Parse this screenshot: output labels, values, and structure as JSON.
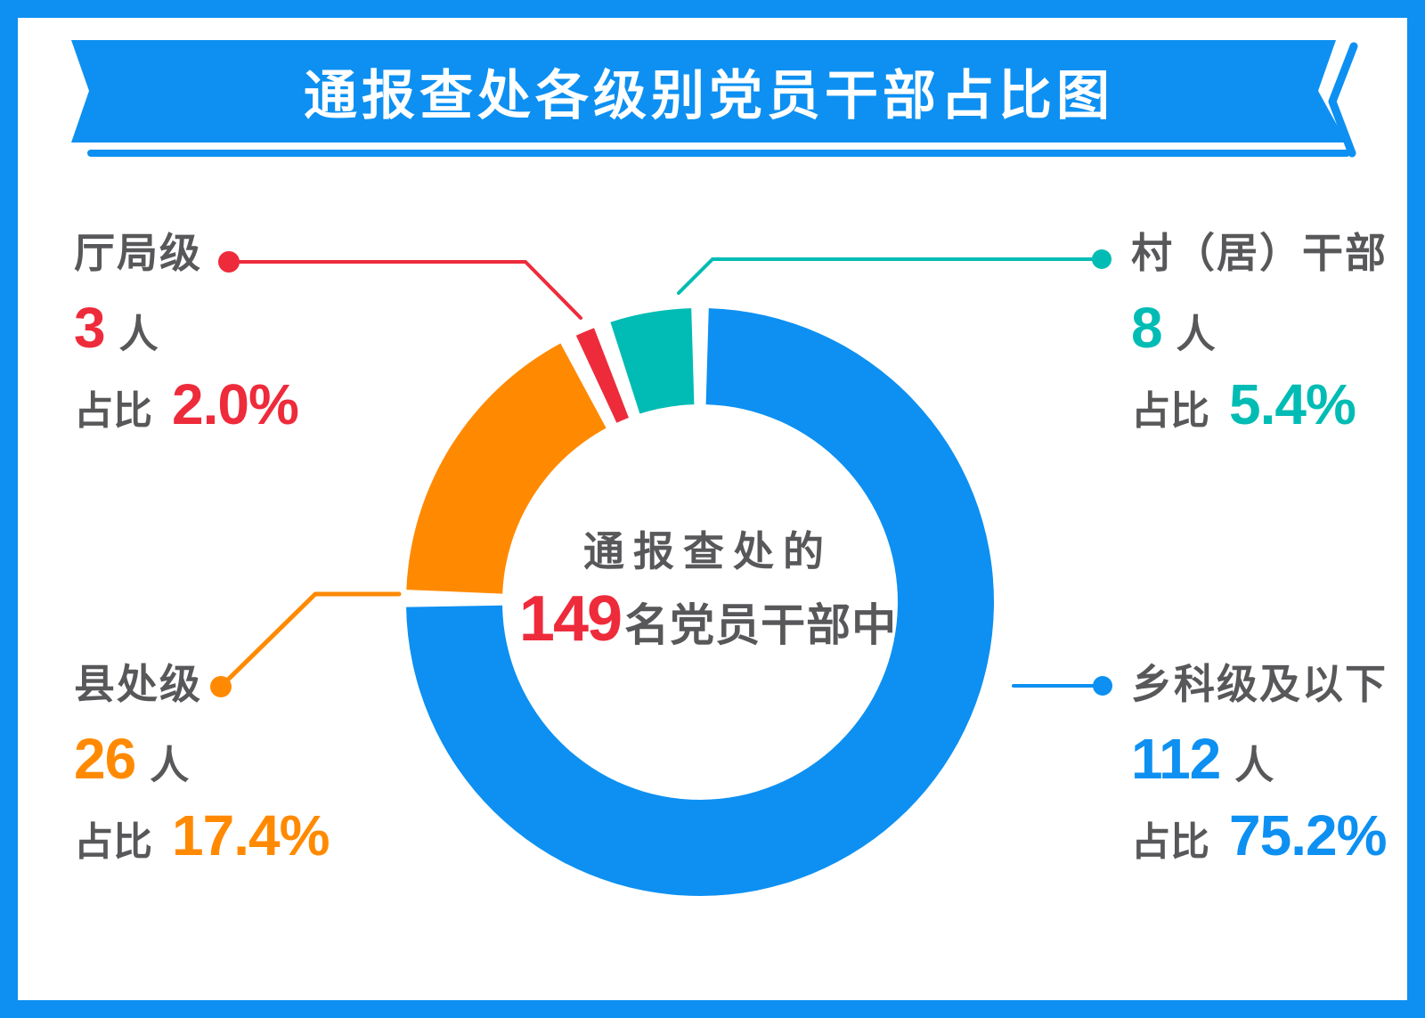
{
  "title": "通报查处各级别党员干部占比图",
  "center": {
    "line1": "通报查处的",
    "total": "149",
    "line2_suffix": "名党员干部中"
  },
  "labels": {
    "unit": "人",
    "ratio_prefix": "占比"
  },
  "colors": {
    "blue": "#0D90F1",
    "orange": "#FF8A02",
    "red": "#EE2B3B",
    "teal": "#00BCB4",
    "gray": "#58585B",
    "background": "#FFFFFF"
  },
  "chart_data": {
    "type": "pie",
    "donut": true,
    "title": "通报查处各级别党员干部占比图",
    "total_count": 149,
    "start_angle_deg": 0,
    "clockwise": true,
    "segment_gap_deg": 3.4,
    "segments": [
      {
        "id": "xiangke",
        "label": "乡科级及以下",
        "count": "112",
        "percent": 75.2,
        "percent_text": "75.2%",
        "color": "#0D90F1"
      },
      {
        "id": "xianchu",
        "label": "县处级",
        "count": "26",
        "percent": 17.4,
        "percent_text": "17.4%",
        "color": "#FF8A02"
      },
      {
        "id": "tingju",
        "label": "厅局级",
        "count": "3",
        "percent": 2.0,
        "percent_text": "2.0%",
        "color": "#EE2B3B"
      },
      {
        "id": "cunju",
        "label": "村（居）干部",
        "count": "8",
        "percent": 5.4,
        "percent_text": "5.4%",
        "color": "#00BCB4"
      }
    ]
  }
}
